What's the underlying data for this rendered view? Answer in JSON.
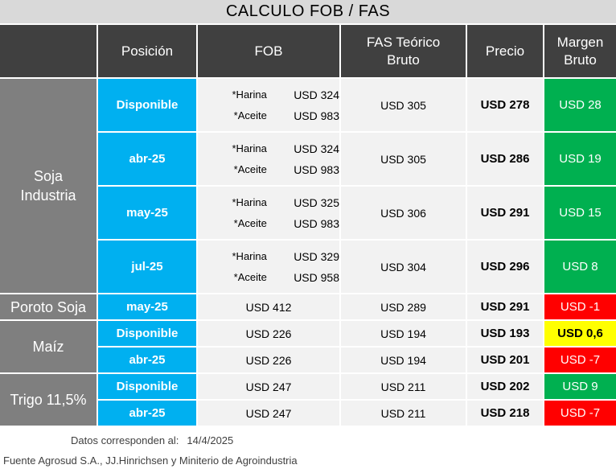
{
  "title": "CALCULO FOB / FAS",
  "headers": {
    "posicion": "Posición",
    "fob": "FOB",
    "fas_line1": "FAS Teórico",
    "fas_line2": "Bruto",
    "precio": "Precio",
    "margen_line1": "Margen",
    "margen_line2": "Bruto"
  },
  "groups": {
    "soja_line1": "Soja",
    "soja_line2": "Industria",
    "poroto": "Poroto Soja",
    "maiz": "Maíz",
    "trigo": "Trigo 11,5%"
  },
  "soja_rows": [
    {
      "posicion": "Disponible",
      "harina_label": "*Harina",
      "harina": "USD 324",
      "aceite_label": "*Aceite",
      "aceite": "USD 983",
      "fas": "USD 305",
      "precio": "USD 278",
      "margen": "USD 28",
      "margen_color": "green"
    },
    {
      "posicion": "abr-25",
      "harina_label": "*Harina",
      "harina": "USD 324",
      "aceite_label": "*Aceite",
      "aceite": "USD 983",
      "fas": "USD 305",
      "precio": "USD 286",
      "margen": "USD 19",
      "margen_color": "green"
    },
    {
      "posicion": "may-25",
      "harina_label": "*Harina",
      "harina": "USD 325",
      "aceite_label": "*Aceite",
      "aceite": "USD 983",
      "fas": "USD 306",
      "precio": "USD 291",
      "margen": "USD 15",
      "margen_color": "green"
    },
    {
      "posicion": "jul-25",
      "harina_label": "*Harina",
      "harina": "USD 329",
      "aceite_label": "*Aceite",
      "aceite": "USD 958",
      "fas": "USD 304",
      "precio": "USD 296",
      "margen": "USD 8",
      "margen_color": "green"
    }
  ],
  "poroto_row": {
    "posicion": "may-25",
    "fob": "USD 412",
    "fas": "USD 289",
    "precio": "USD 291",
    "margen": "USD -1",
    "margen_color": "red"
  },
  "maiz_rows": [
    {
      "posicion": "Disponible",
      "fob": "USD 226",
      "fas": "USD 194",
      "precio": "USD 193",
      "margen": "USD 0,6",
      "margen_color": "yellow"
    },
    {
      "posicion": "abr-25",
      "fob": "USD 226",
      "fas": "USD 194",
      "precio": "USD 201",
      "margen": "USD -7",
      "margen_color": "red"
    }
  ],
  "trigo_rows": [
    {
      "posicion": "Disponible",
      "fob": "USD 247",
      "fas": "USD 211",
      "precio": "USD 202",
      "margen": "USD 9",
      "margen_color": "green"
    },
    {
      "posicion": "abr-25",
      "fob": "USD 247",
      "fas": "USD 211",
      "precio": "USD 218",
      "margen": "USD -7",
      "margen_color": "red"
    }
  ],
  "footer": {
    "datos_label": "Datos corresponden al:",
    "date": "14/4/2025",
    "fuente": "Fuente Agrosud S.A., JJ.Hinrichsen y Miniterio de Agroindustria"
  },
  "colors": {
    "header_bg": "#404040",
    "group_bg": "#7f7f7f",
    "position_bg": "#00b0f0",
    "cell_bg": "#f2f2f2",
    "green": "#00b050",
    "red": "#ff0000",
    "yellow": "#ffff00"
  }
}
